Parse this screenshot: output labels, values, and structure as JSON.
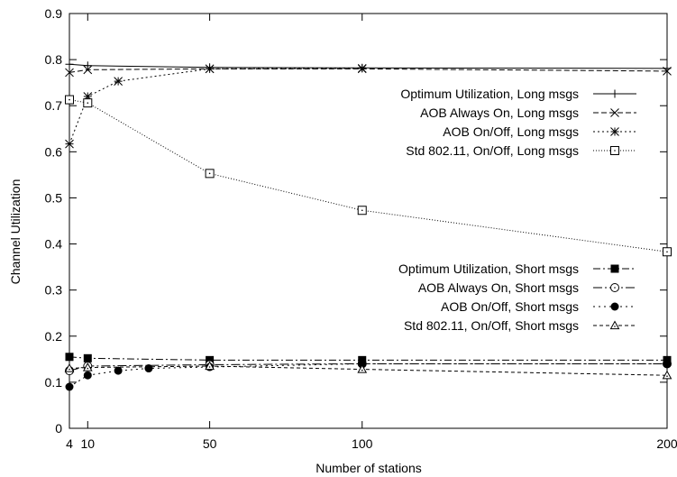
{
  "chart_data": {
    "type": "line",
    "title": "",
    "xlabel": "Number of stations",
    "ylabel": "Channel Utilization",
    "xlim": [
      4,
      200
    ],
    "ylim": [
      0,
      0.9
    ],
    "xticks": [
      4,
      10,
      50,
      100,
      200
    ],
    "yticks": [
      0,
      0.1,
      0.2,
      0.3,
      0.4,
      0.5,
      0.6,
      0.7,
      0.8,
      0.9
    ],
    "grid": false,
    "legend_position": "right",
    "series": [
      {
        "name": "Optimum Utilization, Long msgs",
        "marker": "plus",
        "dash": "",
        "legend_group": "long",
        "x": [
          4,
          10,
          50,
          100,
          200
        ],
        "y": [
          0.79,
          0.787,
          0.783,
          0.782,
          0.781
        ]
      },
      {
        "name": "AOB Always On, Long msgs",
        "marker": "x",
        "dash": "6,3",
        "legend_group": "long",
        "x": [
          4,
          10,
          50,
          100,
          200
        ],
        "y": [
          0.772,
          0.778,
          0.78,
          0.78,
          0.775
        ]
      },
      {
        "name": "AOB On/Off, Long msgs",
        "marker": "star",
        "dash": "2,3",
        "legend_group": "long",
        "x": [
          4,
          10,
          20,
          50,
          100
        ],
        "y": [
          0.617,
          0.72,
          0.753,
          0.78,
          0.781
        ]
      },
      {
        "name": "Std 802.11, On/Off, Long msgs",
        "marker": "square-open",
        "dash": "1,2",
        "legend_group": "long",
        "x": [
          4,
          10,
          50,
          100,
          200
        ],
        "y": [
          0.713,
          0.706,
          0.553,
          0.473,
          0.383
        ]
      },
      {
        "name": "Optimum Utilization, Short msgs",
        "marker": "square-filled",
        "dash": "8,3,2,3",
        "legend_group": "short",
        "x": [
          4,
          10,
          50,
          100,
          200
        ],
        "y": [
          0.155,
          0.152,
          0.148,
          0.148,
          0.148
        ]
      },
      {
        "name": "AOB Always On, Short msgs",
        "marker": "circle-open",
        "dash": "10,3,2,3",
        "legend_group": "short",
        "x": [
          4,
          10,
          50,
          100,
          200
        ],
        "y": [
          0.125,
          0.135,
          0.138,
          0.14,
          0.14
        ]
      },
      {
        "name": "AOB On/Off, Short msgs",
        "marker": "circle-filled",
        "dash": "2,4",
        "legend_group": "short",
        "x": [
          4,
          10,
          20,
          30,
          50,
          100,
          200
        ],
        "y": [
          0.09,
          0.115,
          0.125,
          0.13,
          0.133,
          0.14,
          0.14
        ]
      },
      {
        "name": "Std 802.11, On/Off, Short msgs",
        "marker": "triangle-open",
        "dash": "4,3",
        "legend_group": "short",
        "x": [
          4,
          10,
          50,
          100,
          200
        ],
        "y": [
          0.13,
          0.132,
          0.135,
          0.128,
          0.115
        ]
      }
    ]
  }
}
